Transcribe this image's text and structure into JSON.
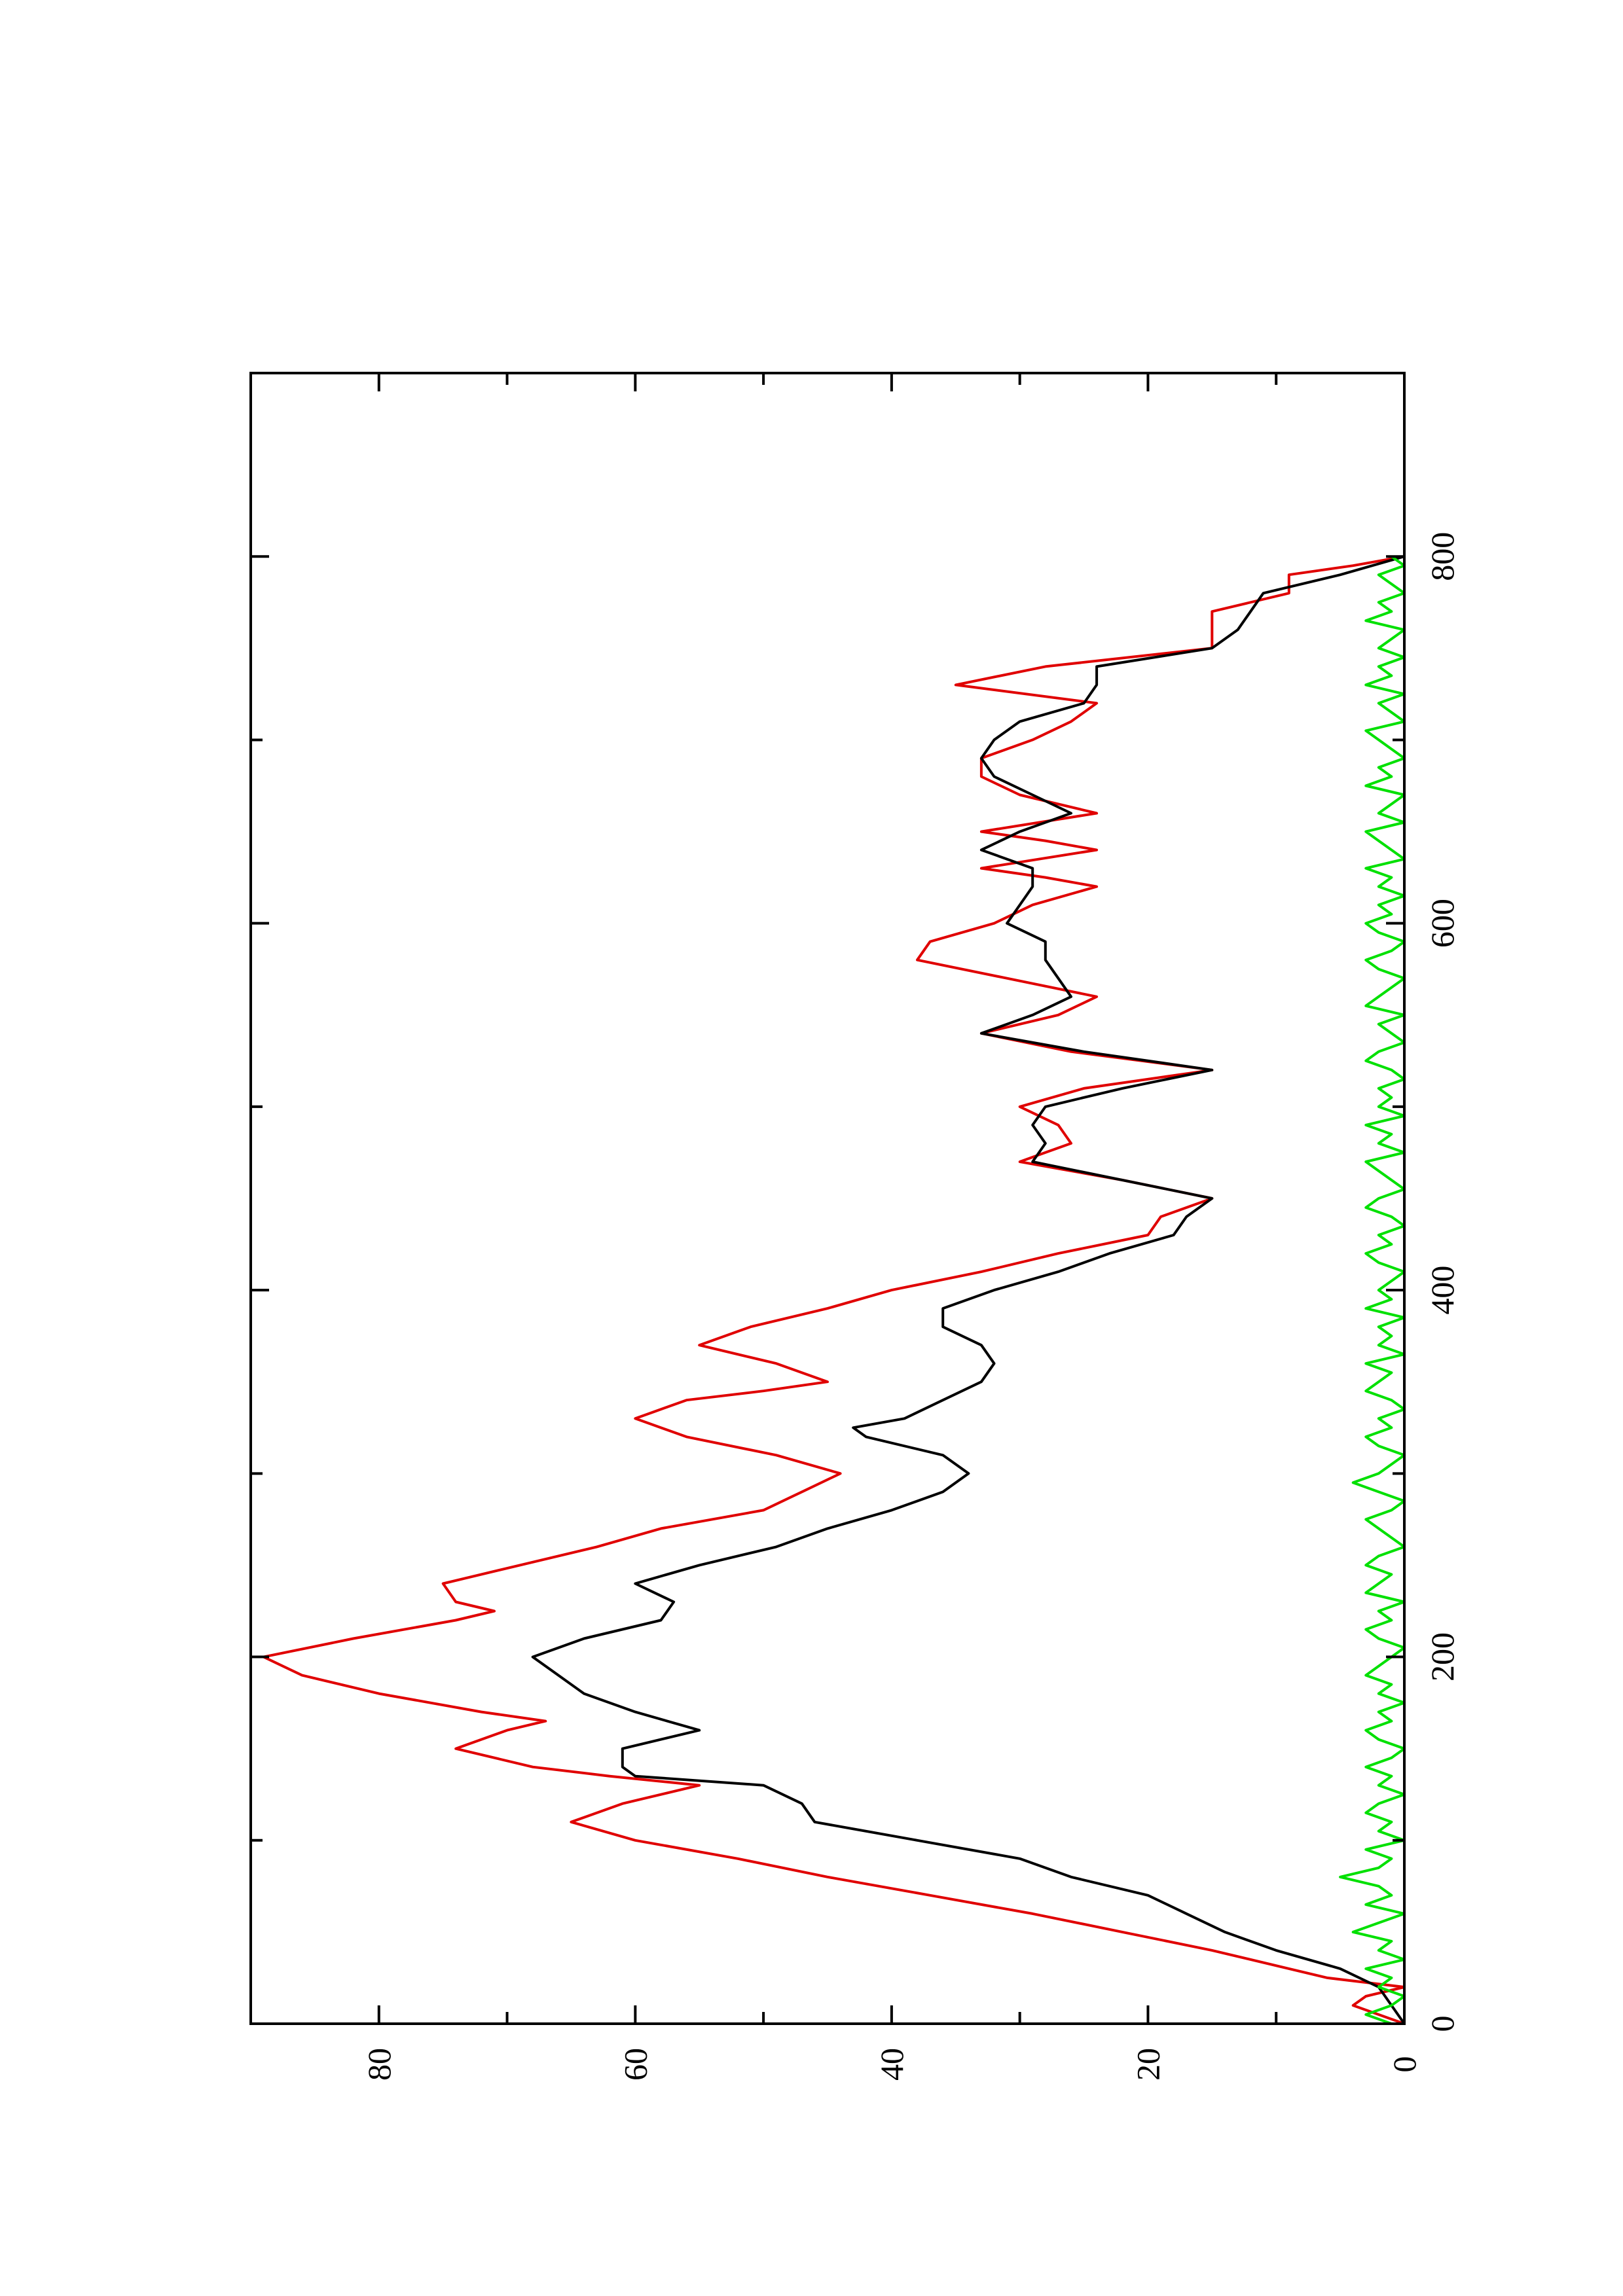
{
  "chart_data": {
    "type": "line",
    "orientation": "rotated-90-ccw",
    "title": "",
    "xlabel": "",
    "ylabel": "",
    "xlim": [
      0,
      900
    ],
    "ylim": [
      0,
      90
    ],
    "grid": false,
    "legend": "none",
    "x_ticks": [
      {
        "value": 0,
        "label": "0"
      },
      {
        "value": 200,
        "label": "200"
      },
      {
        "value": 400,
        "label": "400"
      },
      {
        "value": 600,
        "label": "600"
      },
      {
        "value": 800,
        "label": "800"
      }
    ],
    "x_minor_ticks": [
      100,
      300,
      500,
      700
    ],
    "y_ticks": [
      {
        "value": 0,
        "label": "0"
      },
      {
        "value": 20,
        "label": "20"
      },
      {
        "value": 40,
        "label": "40"
      },
      {
        "value": 60,
        "label": "60"
      },
      {
        "value": 80,
        "label": "80"
      }
    ],
    "y_minor_ticks": [
      10,
      30,
      50,
      70
    ],
    "series": [
      {
        "color": "#e00000",
        "x": [
          0,
          5,
          10,
          15,
          20,
          25,
          30,
          40,
          50,
          60,
          70,
          80,
          90,
          100,
          110,
          120,
          130,
          135,
          140,
          150,
          160,
          165,
          170,
          180,
          190,
          200,
          210,
          220,
          225,
          230,
          240,
          250,
          260,
          270,
          280,
          290,
          300,
          310,
          320,
          330,
          340,
          345,
          350,
          360,
          370,
          380,
          390,
          400,
          410,
          420,
          430,
          440,
          450,
          460,
          470,
          475,
          480,
          490,
          500,
          510,
          520,
          530,
          540,
          550,
          560,
          570,
          580,
          590,
          600,
          610,
          620,
          625,
          630,
          640,
          645,
          650,
          660,
          670,
          680,
          690,
          700,
          710,
          720,
          730,
          740,
          750,
          760,
          770,
          780,
          790,
          795,
          800
        ],
        "y": [
          0,
          2,
          4,
          3,
          0,
          6,
          9,
          15,
          22,
          29,
          37,
          45,
          52,
          60,
          65,
          61,
          55,
          62,
          68,
          74,
          70,
          67,
          72,
          80,
          86,
          89,
          82,
          74,
          71,
          74,
          75,
          69,
          63,
          58,
          50,
          47,
          44,
          49,
          56,
          60,
          56,
          50,
          45,
          49,
          55,
          51,
          45,
          40,
          33,
          27,
          20,
          19,
          15,
          22,
          30,
          28,
          26,
          27,
          30,
          25,
          15,
          26,
          33,
          27,
          24,
          31,
          38,
          37,
          32,
          29,
          24,
          28,
          33,
          24,
          28,
          33,
          24,
          30,
          33,
          33,
          29,
          26,
          24,
          35,
          28,
          15,
          15,
          15,
          9,
          9,
          4,
          0
        ]
      },
      {
        "color": "#000000",
        "x": [
          0,
          10,
          20,
          30,
          40,
          50,
          60,
          70,
          80,
          90,
          100,
          110,
          120,
          130,
          135,
          140,
          150,
          160,
          170,
          180,
          190,
          200,
          210,
          220,
          230,
          240,
          250,
          260,
          270,
          280,
          290,
          300,
          310,
          320,
          325,
          330,
          340,
          350,
          360,
          370,
          380,
          390,
          400,
          410,
          420,
          430,
          440,
          450,
          460,
          470,
          480,
          490,
          500,
          510,
          520,
          530,
          540,
          550,
          560,
          570,
          580,
          590,
          600,
          610,
          620,
          630,
          640,
          650,
          660,
          670,
          680,
          690,
          700,
          710,
          720,
          730,
          740,
          750,
          760,
          770,
          780,
          790,
          800
        ],
        "y": [
          0,
          1,
          2,
          5,
          10,
          14,
          17,
          20,
          26,
          30,
          38,
          46,
          47,
          50,
          60,
          61,
          61,
          55,
          60,
          64,
          66,
          68,
          64,
          58,
          57,
          60,
          55,
          49,
          45,
          40,
          36,
          34,
          36,
          42,
          43,
          39,
          36,
          33,
          32,
          33,
          36,
          36,
          32,
          27,
          23,
          18,
          17,
          15,
          22,
          29,
          28,
          29,
          28,
          22,
          15,
          25,
          33,
          29,
          26,
          27,
          28,
          28,
          31,
          30,
          29,
          29,
          33,
          30,
          26,
          29,
          32,
          33,
          32,
          30,
          25,
          24,
          24,
          15,
          13,
          12,
          11,
          5,
          0
        ]
      },
      {
        "color": "#00e000",
        "x": [
          0,
          5,
          10,
          15,
          20,
          25,
          30,
          35,
          40,
          45,
          50,
          55,
          60,
          65,
          70,
          75,
          80,
          85,
          90,
          95,
          100,
          105,
          110,
          115,
          120,
          125,
          130,
          135,
          140,
          145,
          150,
          155,
          160,
          165,
          170,
          175,
          180,
          185,
          190,
          195,
          200,
          205,
          210,
          215,
          220,
          225,
          230,
          235,
          240,
          245,
          250,
          255,
          260,
          265,
          270,
          275,
          280,
          285,
          290,
          295,
          300,
          305,
          310,
          315,
          320,
          325,
          330,
          335,
          340,
          345,
          350,
          355,
          360,
          365,
          370,
          375,
          380,
          385,
          390,
          395,
          400,
          405,
          410,
          415,
          420,
          425,
          430,
          435,
          440,
          445,
          450,
          455,
          460,
          465,
          470,
          475,
          480,
          485,
          490,
          495,
          500,
          505,
          510,
          515,
          520,
          525,
          530,
          535,
          540,
          545,
          550,
          555,
          560,
          565,
          570,
          575,
          580,
          585,
          590,
          595,
          600,
          605,
          610,
          615,
          620,
          625,
          630,
          635,
          640,
          645,
          650,
          655,
          660,
          665,
          670,
          675,
          680,
          685,
          690,
          695,
          700,
          705,
          710,
          715,
          720,
          725,
          730,
          735,
          740,
          745,
          750,
          755,
          760,
          765,
          770,
          775,
          780,
          785,
          790,
          795,
          800
        ],
        "y": [
          1,
          3,
          1,
          0,
          2,
          1,
          3,
          0,
          2,
          1,
          4,
          2,
          0,
          3,
          1,
          2,
          5,
          2,
          1,
          3,
          0,
          2,
          1,
          3,
          2,
          0,
          2,
          1,
          3,
          1,
          0,
          2,
          3,
          1,
          2,
          0,
          2,
          1,
          3,
          2,
          1,
          0,
          2,
          3,
          1,
          2,
          0,
          3,
          2,
          1,
          3,
          2,
          0,
          1,
          2,
          3,
          1,
          0,
          2,
          4,
          2,
          1,
          0,
          2,
          3,
          1,
          2,
          0,
          1,
          3,
          2,
          1,
          3,
          0,
          2,
          1,
          2,
          0,
          3,
          1,
          2,
          1,
          0,
          2,
          3,
          1,
          2,
          0,
          1,
          3,
          2,
          0,
          1,
          2,
          3,
          0,
          2,
          1,
          3,
          0,
          2,
          1,
          2,
          0,
          1,
          3,
          2,
          0,
          1,
          2,
          0,
          3,
          2,
          1,
          0,
          2,
          3,
          1,
          0,
          2,
          3,
          1,
          2,
          0,
          2,
          1,
          3,
          0,
          1,
          2,
          3,
          0,
          2,
          1,
          0,
          3,
          1,
          2,
          0,
          1,
          2,
          3,
          0,
          1,
          2,
          0,
          3,
          1,
          2,
          0,
          2,
          1,
          0,
          3,
          1,
          2,
          0,
          1,
          2,
          0,
          1
        ]
      }
    ]
  }
}
